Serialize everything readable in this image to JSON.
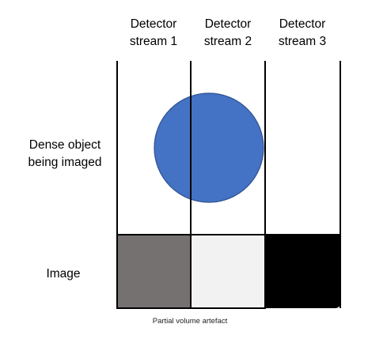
{
  "headers": [
    {
      "line1": "Detector",
      "line2": "stream 1"
    },
    {
      "line1": "Detector",
      "line2": "stream 2"
    },
    {
      "line1": "Detector",
      "line2": "stream 3"
    }
  ],
  "row_labels": {
    "object": {
      "line1": "Dense object",
      "line2": "being imaged"
    },
    "image": "Image"
  },
  "caption": "Partial volume artefact",
  "colors": {
    "circle_fill": "#4472C4",
    "circle_stroke": "#2F528F",
    "pixel_1": "#767171",
    "pixel_2": "#F2F2F2",
    "pixel_3": "#000000",
    "lines": "#000000"
  }
}
